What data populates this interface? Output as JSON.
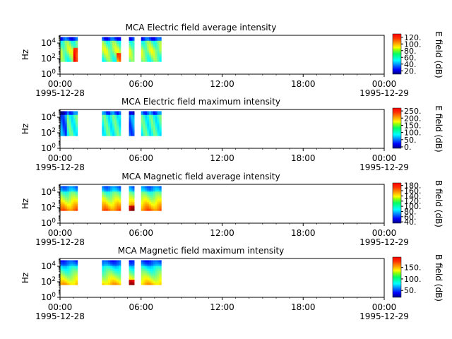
{
  "x_ticks": [
    {
      "label": "00:00",
      "date": "1995-12-28",
      "hour": 0
    },
    {
      "label": "06:00",
      "date": "",
      "hour": 6
    },
    {
      "label": "12:00",
      "date": "",
      "hour": 12
    },
    {
      "label": "18:00",
      "date": "",
      "hour": 18
    },
    {
      "label": "00:00",
      "date": "1995-12-29",
      "hour": 24
    }
  ],
  "chart_data": [
    {
      "type": "heatmap",
      "title": "MCA  Electric field average intensity",
      "ylabel": "Hz",
      "ylim": [
        1,
        100000
      ],
      "yscale": "log",
      "y_ticks": [
        "10^0",
        "10^2",
        "10^4"
      ],
      "xlim": [
        "1995-12-28 00:00",
        "1995-12-29 00:00"
      ],
      "colorbar": {
        "label": "E field (dB)",
        "range": [
          10,
          130
        ],
        "ticks": [
          "20.",
          "40.",
          "60.",
          "80.",
          "100.",
          "120."
        ]
      },
      "data_spans_hours": [
        [
          0.03,
          1.3
        ],
        [
          3.1,
          4.5
        ],
        [
          5.1,
          5.5
        ],
        [
          6.0,
          7.5
        ]
      ],
      "profile": "avgE"
    },
    {
      "type": "heatmap",
      "title": "MCA  Electric field maximum intensity",
      "ylabel": "Hz",
      "ylim": [
        1,
        100000
      ],
      "yscale": "log",
      "y_ticks": [
        "10^0",
        "10^2",
        "10^4"
      ],
      "xlim": [
        "1995-12-28 00:00",
        "1995-12-29 00:00"
      ],
      "colorbar": {
        "label": "E field (dB)",
        "range": [
          -10,
          270
        ],
        "ticks": [
          "0.",
          "50.",
          "100.",
          "150.",
          "200.",
          "250."
        ]
      },
      "data_spans_hours": [
        [
          0.03,
          1.3
        ],
        [
          3.1,
          4.5
        ],
        [
          5.1,
          5.5
        ],
        [
          6.0,
          7.5
        ]
      ],
      "profile": "maxE"
    },
    {
      "type": "heatmap",
      "title": "MCA  Magnetic field average intensity",
      "ylabel": "Hz",
      "ylim": [
        1,
        100000
      ],
      "yscale": "log",
      "y_ticks": [
        "10^0",
        "10^2",
        "10^4"
      ],
      "xlim": [
        "1995-12-28 00:00",
        "1995-12-29 00:00"
      ],
      "colorbar": {
        "label": "B field (dB)",
        "range": [
          35,
          190
        ],
        "ticks": [
          "40.",
          "60.",
          "80.",
          "100.",
          "120.",
          "140.",
          "160.",
          "180."
        ]
      },
      "data_spans_hours": [
        [
          0.03,
          1.3
        ],
        [
          3.1,
          4.5
        ],
        [
          5.1,
          5.5
        ],
        [
          6.0,
          7.5
        ]
      ],
      "profile": "avgB"
    },
    {
      "type": "heatmap",
      "title": "MCA  Magnetic field maximum intensity",
      "ylabel": "Hz",
      "ylim": [
        1,
        100000
      ],
      "yscale": "log",
      "y_ticks": [
        "10^0",
        "10^2",
        "10^4"
      ],
      "xlim": [
        "1995-12-28 00:00",
        "1995-12-29 00:00"
      ],
      "colorbar": {
        "label": "B field (dB)",
        "range": [
          20,
          195
        ],
        "ticks": [
          "50.",
          "100.",
          "150."
        ]
      },
      "data_spans_hours": [
        [
          0.03,
          1.3
        ],
        [
          3.1,
          4.5
        ],
        [
          5.1,
          5.5
        ],
        [
          6.0,
          7.5
        ]
      ],
      "profile": "maxB"
    }
  ]
}
